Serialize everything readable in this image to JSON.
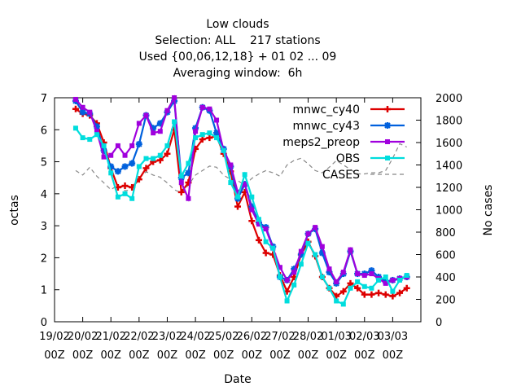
{
  "chart_data": {
    "type": "line",
    "title_lines": [
      "Low clouds",
      "Selection: ALL    217 stations",
      "Used {00,06,12,18} + 01 02 ... 09",
      "Averaging window:  6h"
    ],
    "xlabel": "Date",
    "ylabel": "octas",
    "y2label": "No cases",
    "xlim": [
      0,
      13
    ],
    "ylim": [
      0,
      7
    ],
    "y2lim": [
      0,
      2000
    ],
    "grid": false,
    "legend_position": "top-right",
    "x_ticks": [
      {
        "top": "19/02",
        "bottom": "00Z"
      },
      {
        "top": "20/02",
        "bottom": "00Z"
      },
      {
        "top": "21/02",
        "bottom": "00Z"
      },
      {
        "top": "22/02",
        "bottom": "00Z"
      },
      {
        "top": "23/02",
        "bottom": "00Z"
      },
      {
        "top": "24/02",
        "bottom": "00Z"
      },
      {
        "top": "25/02",
        "bottom": "00Z"
      },
      {
        "top": "26/02",
        "bottom": "00Z"
      },
      {
        "top": "27/02",
        "bottom": "00Z"
      },
      {
        "top": "28/02",
        "bottom": "00Z"
      },
      {
        "top": "01/03",
        "bottom": "00Z"
      },
      {
        "top": "02/03",
        "bottom": "00Z"
      },
      {
        "top": "03/03",
        "bottom": "00Z"
      }
    ],
    "y_ticks": [
      "0",
      "1",
      "2",
      "3",
      "4",
      "5",
      "6",
      "7"
    ],
    "y2_ticks": [
      "0",
      "200",
      "400",
      "600",
      "800",
      "1000",
      "1200",
      "1400",
      "1600",
      "1800",
      "2000"
    ],
    "series": [
      {
        "name": "mnwc_cy40",
        "color": "#dd0000",
        "marker": "plus",
        "axis": "y",
        "x": [
          0.75,
          1,
          1.25,
          1.5,
          1.75,
          2,
          2.25,
          2.5,
          2.75,
          3,
          3.25,
          3.5,
          3.75,
          4,
          4.25,
          4.5,
          4.75,
          5,
          5.25,
          5.5,
          5.75,
          6,
          6.25,
          6.5,
          6.75,
          7,
          7.25,
          7.5,
          7.75,
          8,
          8.25,
          8.5,
          8.75,
          9,
          9.25,
          9.5,
          9.75,
          10,
          10.25,
          10.5,
          10.75,
          11,
          11.25,
          11.5,
          11.75,
          12,
          12.25,
          12.5
        ],
        "values": [
          6.65,
          6.5,
          6.45,
          6.2,
          5.6,
          4.8,
          4.2,
          4.25,
          4.2,
          4.45,
          4.8,
          5.0,
          5.05,
          5.25,
          6.0,
          4.05,
          4.35,
          5.4,
          5.7,
          5.75,
          5.8,
          5.25,
          4.7,
          3.6,
          4.05,
          3.15,
          2.55,
          2.15,
          2.1,
          1.45,
          0.95,
          1.4,
          2.1,
          2.5,
          2.05,
          1.4,
          1.05,
          0.8,
          0.95,
          1.2,
          1.05,
          0.85,
          0.85,
          0.9,
          0.85,
          0.8,
          0.9,
          1.05
        ]
      },
      {
        "name": "mnwc_cy43",
        "color": "#0060dd",
        "marker": "star",
        "axis": "y",
        "x": [
          0.75,
          1,
          1.25,
          1.5,
          1.75,
          2,
          2.25,
          2.5,
          2.75,
          3,
          3.25,
          3.5,
          3.75,
          4,
          4.25,
          4.5,
          4.75,
          5,
          5.25,
          5.5,
          5.75,
          6,
          6.25,
          6.5,
          6.75,
          7,
          7.25,
          7.5,
          7.75,
          8,
          8.25,
          8.5,
          8.75,
          9,
          9.25,
          9.5,
          9.75,
          10,
          10.25,
          10.5,
          10.75,
          11,
          11.25,
          11.5,
          11.75,
          12,
          12.25,
          12.5
        ],
        "values": [
          6.9,
          6.55,
          6.5,
          6.1,
          5.35,
          4.85,
          4.7,
          4.85,
          4.95,
          5.55,
          6.45,
          6.05,
          6.2,
          6.55,
          6.9,
          4.5,
          4.65,
          6.05,
          6.7,
          6.6,
          5.9,
          5.4,
          4.85,
          3.85,
          4.3,
          3.6,
          3.1,
          2.95,
          2.35,
          1.4,
          1.3,
          1.65,
          2.1,
          2.75,
          2.9,
          2.15,
          1.55,
          1.2,
          1.5,
          2.2,
          1.5,
          1.5,
          1.6,
          1.4,
          1.25,
          1.3,
          1.35,
          1.4
        ]
      },
      {
        "name": "meps2_preop",
        "color": "#a000dd",
        "marker": "square",
        "axis": "y",
        "x": [
          0.75,
          1,
          1.25,
          1.5,
          1.75,
          2,
          2.25,
          2.5,
          2.75,
          3,
          3.25,
          3.5,
          3.75,
          4,
          4.25,
          4.5,
          4.75,
          5,
          5.25,
          5.5,
          5.75,
          6,
          6.25,
          6.5,
          6.75,
          7,
          7.25,
          7.5,
          7.75,
          8,
          8.25,
          8.5,
          8.75,
          9,
          9.25,
          9.5,
          9.75,
          10,
          10.25,
          10.5,
          10.75,
          11,
          11.25,
          11.5,
          11.75,
          12,
          12.25,
          12.5
        ],
        "values": [
          6.95,
          6.7,
          6.55,
          5.95,
          5.15,
          5.2,
          5.5,
          5.2,
          5.5,
          6.2,
          6.45,
          5.9,
          5.95,
          6.6,
          7.0,
          4.35,
          3.85,
          5.95,
          6.7,
          6.65,
          6.3,
          5.35,
          4.9,
          4.05,
          4.3,
          3.5,
          3.05,
          2.9,
          2.3,
          1.7,
          1.3,
          1.55,
          2.2,
          2.75,
          2.95,
          2.35,
          1.65,
          1.25,
          1.55,
          2.25,
          1.5,
          1.45,
          1.5,
          1.35,
          1.2,
          1.3,
          1.35,
          1.4
        ]
      },
      {
        "name": "OBS",
        "color": "#00dddd",
        "marker": "square",
        "axis": "y",
        "x": [
          0.75,
          1,
          1.25,
          1.5,
          1.75,
          2,
          2.25,
          2.5,
          2.75,
          3,
          3.25,
          3.5,
          3.75,
          4,
          4.25,
          4.5,
          4.75,
          5,
          5.25,
          5.5,
          5.75,
          6,
          6.25,
          6.5,
          6.75,
          7,
          7.25,
          7.5,
          7.75,
          8,
          8.25,
          8.5,
          8.75,
          9,
          9.25,
          9.5,
          9.75,
          10,
          10.25,
          10.5,
          10.75,
          11,
          11.25,
          11.5,
          11.75,
          12,
          12.25,
          12.5
        ],
        "values": [
          6.05,
          5.75,
          5.7,
          5.85,
          5.5,
          4.65,
          3.9,
          4.0,
          3.85,
          4.85,
          5.1,
          5.1,
          5.2,
          5.5,
          6.25,
          4.55,
          4.95,
          5.75,
          5.85,
          5.9,
          5.75,
          5.35,
          4.35,
          3.9,
          4.6,
          3.9,
          3.2,
          2.5,
          2.3,
          1.4,
          0.65,
          1.15,
          1.8,
          2.45,
          2.1,
          1.4,
          1.05,
          0.65,
          0.55,
          1.05,
          1.25,
          1.1,
          1.05,
          1.3,
          1.4,
          0.95,
          1.3,
          1.45
        ]
      },
      {
        "name": "CASES",
        "color": "#888888",
        "marker": "none",
        "dashed": true,
        "axis": "y2",
        "x": [
          0.75,
          1,
          1.25,
          1.5,
          1.75,
          2,
          2.25,
          2.5,
          2.75,
          3,
          3.25,
          3.5,
          3.75,
          4,
          4.25,
          4.5,
          4.75,
          5,
          5.25,
          5.5,
          5.75,
          6,
          6.25,
          6.5,
          6.75,
          7,
          7.25,
          7.5,
          7.75,
          8,
          8.25,
          8.5,
          8.75,
          9,
          9.25,
          9.5,
          9.75,
          10,
          10.25,
          10.5,
          10.75,
          11,
          11.25,
          11.5,
          11.75,
          12,
          12.25,
          12.5
        ],
        "values": [
          1350,
          1310,
          1380,
          1300,
          1240,
          1180,
          1220,
          1170,
          1180,
          1280,
          1340,
          1310,
          1290,
          1240,
          1180,
          1150,
          1220,
          1310,
          1350,
          1390,
          1380,
          1310,
          1270,
          1260,
          1220,
          1280,
          1320,
          1350,
          1330,
          1300,
          1400,
          1440,
          1460,
          1410,
          1350,
          1330,
          1380,
          1440,
          1400,
          1360,
          1320,
          1320,
          1330,
          1330,
          1350,
          1460,
          1590,
          1560
        ]
      }
    ]
  }
}
